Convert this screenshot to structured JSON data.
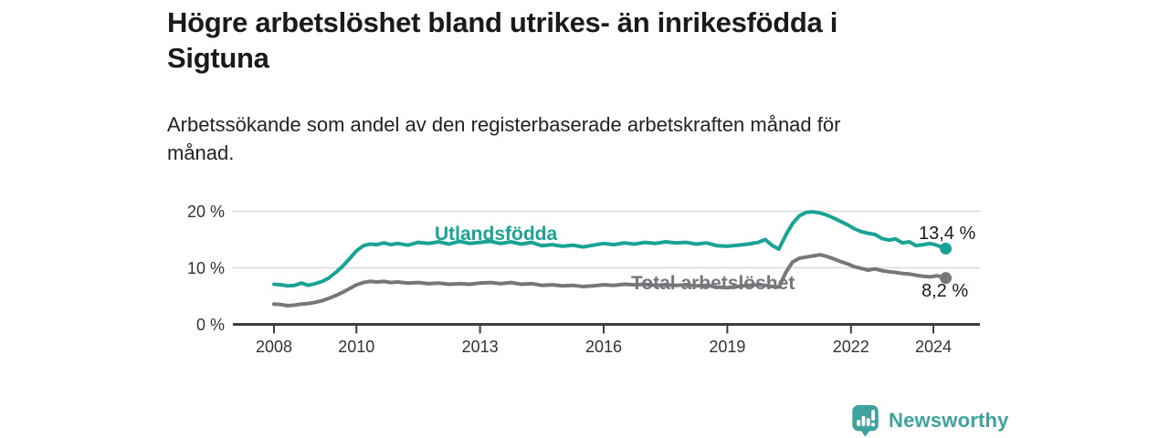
{
  "title": {
    "lines": [
      "Högre arbetslöshet bland utrikes- än inrikesfödda i",
      "Sigtuna"
    ]
  },
  "subtitle": {
    "lines": [
      "Arbetssökande som andel av den registerbaserade arbetskraften månad för",
      "månad."
    ]
  },
  "chart_data": {
    "type": "line",
    "title": "Högre arbetslöshet bland utrikes- än inrikesfödda i Sigtuna",
    "subtitle": "Arbetssökande som andel av den registerbaserade arbetskraften månad för månad.",
    "x_axis": {
      "ticks": [
        {
          "year": 2008,
          "label": "2008"
        },
        {
          "year": 2010,
          "label": "2010"
        },
        {
          "year": 2013,
          "label": "2013"
        },
        {
          "year": 2016,
          "label": "2016"
        },
        {
          "year": 2019,
          "label": "2019"
        },
        {
          "year": 2022,
          "label": "2022"
        },
        {
          "year": 2024,
          "label": "2024"
        }
      ],
      "range": [
        2007,
        2025.2
      ]
    },
    "y_axis": {
      "unit": "%",
      "ticks": [
        {
          "value": 0,
          "label": "0 %"
        },
        {
          "value": 10,
          "label": "10 %"
        },
        {
          "value": 20,
          "label": "20 %"
        }
      ],
      "range": [
        0,
        21.5
      ],
      "grid": true
    },
    "colors": {
      "axis": "#3e3e3e",
      "grid": "#d9d9d9",
      "tick_text": "#333333"
    },
    "series": [
      {
        "name": "Utlandsfödda",
        "color": "#1aa394",
        "end_label": "13,4 %",
        "end_value": 13.4,
        "points": [
          [
            2008.0,
            7.1
          ],
          [
            2008.17,
            7.0
          ],
          [
            2008.33,
            6.8
          ],
          [
            2008.5,
            6.9
          ],
          [
            2008.67,
            7.3
          ],
          [
            2008.83,
            6.9
          ],
          [
            2009.0,
            7.2
          ],
          [
            2009.17,
            7.6
          ],
          [
            2009.33,
            8.2
          ],
          [
            2009.5,
            9.2
          ],
          [
            2009.67,
            10.3
          ],
          [
            2009.83,
            11.6
          ],
          [
            2010.0,
            13.0
          ],
          [
            2010.17,
            13.9
          ],
          [
            2010.33,
            14.2
          ],
          [
            2010.5,
            14.1
          ],
          [
            2010.67,
            14.4
          ],
          [
            2010.83,
            14.1
          ],
          [
            2011.0,
            14.3
          ],
          [
            2011.25,
            14.0
          ],
          [
            2011.5,
            14.5
          ],
          [
            2011.75,
            14.3
          ],
          [
            2012.0,
            14.6
          ],
          [
            2012.25,
            14.2
          ],
          [
            2012.5,
            14.7
          ],
          [
            2012.75,
            14.3
          ],
          [
            2013.0,
            14.5
          ],
          [
            2013.25,
            14.7
          ],
          [
            2013.5,
            14.3
          ],
          [
            2013.75,
            14.6
          ],
          [
            2014.0,
            14.2
          ],
          [
            2014.25,
            14.5
          ],
          [
            2014.5,
            13.9
          ],
          [
            2014.75,
            14.1
          ],
          [
            2015.0,
            13.8
          ],
          [
            2015.25,
            14.0
          ],
          [
            2015.5,
            13.7
          ],
          [
            2015.75,
            14.0
          ],
          [
            2016.0,
            14.3
          ],
          [
            2016.25,
            14.1
          ],
          [
            2016.5,
            14.4
          ],
          [
            2016.75,
            14.2
          ],
          [
            2017.0,
            14.5
          ],
          [
            2017.25,
            14.3
          ],
          [
            2017.5,
            14.6
          ],
          [
            2017.75,
            14.4
          ],
          [
            2018.0,
            14.5
          ],
          [
            2018.25,
            14.2
          ],
          [
            2018.5,
            14.4
          ],
          [
            2018.75,
            13.9
          ],
          [
            2019.0,
            13.8
          ],
          [
            2019.25,
            14.0
          ],
          [
            2019.5,
            14.2
          ],
          [
            2019.75,
            14.5
          ],
          [
            2019.92,
            15.0
          ],
          [
            2020.08,
            14.0
          ],
          [
            2020.25,
            13.3
          ],
          [
            2020.42,
            15.8
          ],
          [
            2020.58,
            17.8
          ],
          [
            2020.75,
            19.2
          ],
          [
            2020.92,
            19.8
          ],
          [
            2021.08,
            19.9
          ],
          [
            2021.25,
            19.7
          ],
          [
            2021.42,
            19.3
          ],
          [
            2021.58,
            18.8
          ],
          [
            2021.75,
            18.2
          ],
          [
            2021.92,
            17.6
          ],
          [
            2022.08,
            16.9
          ],
          [
            2022.25,
            16.4
          ],
          [
            2022.42,
            16.1
          ],
          [
            2022.58,
            15.9
          ],
          [
            2022.75,
            15.2
          ],
          [
            2022.92,
            14.9
          ],
          [
            2023.08,
            15.1
          ],
          [
            2023.25,
            14.4
          ],
          [
            2023.42,
            14.6
          ],
          [
            2023.58,
            13.9
          ],
          [
            2023.75,
            14.1
          ],
          [
            2023.92,
            14.3
          ],
          [
            2024.08,
            14.0
          ],
          [
            2024.3,
            13.4
          ]
        ]
      },
      {
        "name": "Total arbetslöshet",
        "color": "#76767b",
        "end_label": "8,2 %",
        "end_value": 8.2,
        "points": [
          [
            2008.0,
            3.6
          ],
          [
            2008.17,
            3.5
          ],
          [
            2008.33,
            3.3
          ],
          [
            2008.5,
            3.4
          ],
          [
            2008.67,
            3.6
          ],
          [
            2008.83,
            3.7
          ],
          [
            2009.0,
            3.9
          ],
          [
            2009.17,
            4.2
          ],
          [
            2009.33,
            4.6
          ],
          [
            2009.5,
            5.1
          ],
          [
            2009.67,
            5.7
          ],
          [
            2009.83,
            6.3
          ],
          [
            2010.0,
            7.0
          ],
          [
            2010.17,
            7.4
          ],
          [
            2010.33,
            7.6
          ],
          [
            2010.5,
            7.5
          ],
          [
            2010.67,
            7.6
          ],
          [
            2010.83,
            7.4
          ],
          [
            2011.0,
            7.5
          ],
          [
            2011.25,
            7.3
          ],
          [
            2011.5,
            7.4
          ],
          [
            2011.75,
            7.2
          ],
          [
            2012.0,
            7.3
          ],
          [
            2012.25,
            7.1
          ],
          [
            2012.5,
            7.2
          ],
          [
            2012.75,
            7.1
          ],
          [
            2013.0,
            7.3
          ],
          [
            2013.25,
            7.4
          ],
          [
            2013.5,
            7.2
          ],
          [
            2013.75,
            7.4
          ],
          [
            2014.0,
            7.1
          ],
          [
            2014.25,
            7.2
          ],
          [
            2014.5,
            6.9
          ],
          [
            2014.75,
            7.0
          ],
          [
            2015.0,
            6.8
          ],
          [
            2015.25,
            6.9
          ],
          [
            2015.5,
            6.7
          ],
          [
            2015.75,
            6.8
          ],
          [
            2016.0,
            7.0
          ],
          [
            2016.25,
            6.9
          ],
          [
            2016.5,
            7.1
          ],
          [
            2016.75,
            7.0
          ],
          [
            2017.0,
            7.1
          ],
          [
            2017.25,
            6.9
          ],
          [
            2017.5,
            7.0
          ],
          [
            2017.75,
            6.9
          ],
          [
            2018.0,
            7.0
          ],
          [
            2018.25,
            6.8
          ],
          [
            2018.5,
            6.9
          ],
          [
            2018.75,
            6.6
          ],
          [
            2019.0,
            6.5
          ],
          [
            2019.25,
            6.7
          ],
          [
            2019.5,
            6.9
          ],
          [
            2019.75,
            7.0
          ],
          [
            2019.92,
            6.9
          ],
          [
            2020.08,
            6.7
          ],
          [
            2020.25,
            6.6
          ],
          [
            2020.42,
            9.2
          ],
          [
            2020.58,
            11.0
          ],
          [
            2020.75,
            11.7
          ],
          [
            2020.92,
            11.9
          ],
          [
            2021.08,
            12.1
          ],
          [
            2021.25,
            12.3
          ],
          [
            2021.42,
            12.0
          ],
          [
            2021.58,
            11.6
          ],
          [
            2021.75,
            11.1
          ],
          [
            2021.92,
            10.7
          ],
          [
            2022.08,
            10.2
          ],
          [
            2022.25,
            9.9
          ],
          [
            2022.42,
            9.6
          ],
          [
            2022.58,
            9.8
          ],
          [
            2022.75,
            9.5
          ],
          [
            2022.92,
            9.3
          ],
          [
            2023.08,
            9.2
          ],
          [
            2023.25,
            9.0
          ],
          [
            2023.42,
            8.9
          ],
          [
            2023.58,
            8.7
          ],
          [
            2023.75,
            8.5
          ],
          [
            2023.92,
            8.4
          ],
          [
            2024.1,
            8.6
          ],
          [
            2024.3,
            8.2
          ]
        ]
      }
    ]
  },
  "footer": {
    "brand": "Newsworthy",
    "brand_color": "#3ea29d",
    "logo_icon": "bar-chart-speech-bubble-icon"
  }
}
